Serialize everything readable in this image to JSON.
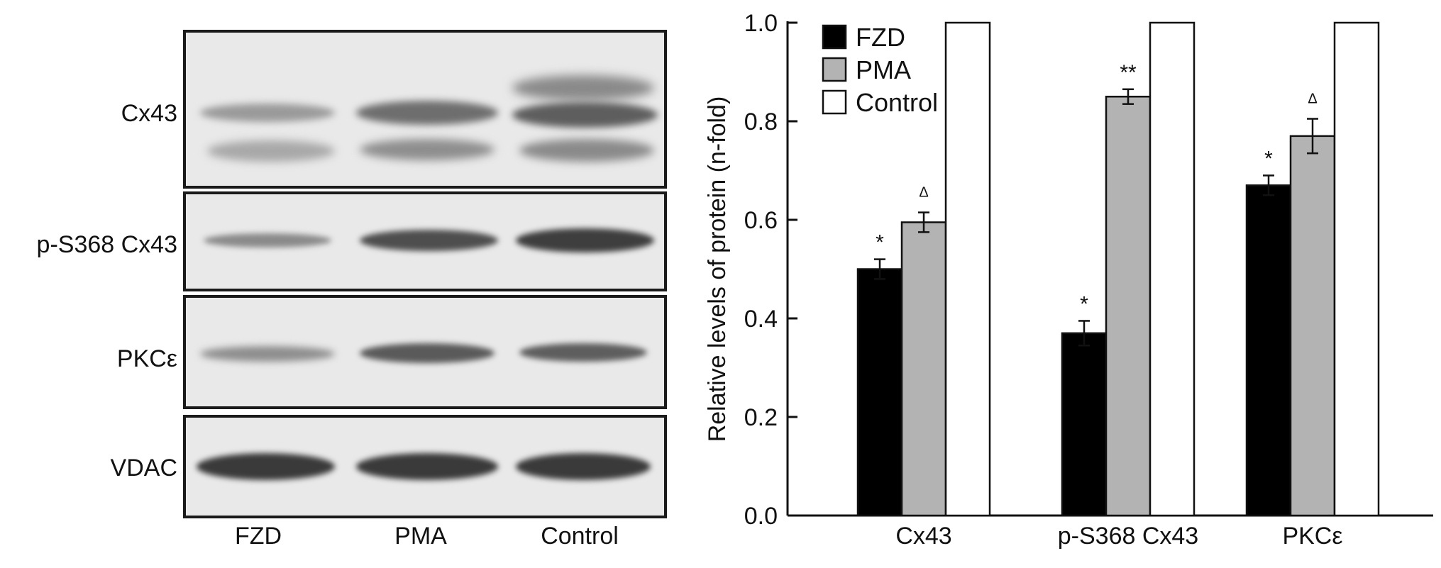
{
  "blot": {
    "rows": [
      {
        "label": "Cx43"
      },
      {
        "label": "p-S368 Cx43"
      },
      {
        "label": "PKCε"
      },
      {
        "label": "VDAC"
      }
    ],
    "lanes": [
      "FZD",
      "PMA",
      "Control"
    ]
  },
  "chart_data": {
    "type": "bar",
    "ylabel": "Relative levels of protein (n-fold)",
    "xlabel": "",
    "ylim": [
      0.0,
      1.0
    ],
    "yticks": [
      "0.0",
      "0.2",
      "0.4",
      "0.6",
      "0.8",
      "1.0"
    ],
    "categories": [
      "Cx43",
      "p-S368 Cx43",
      "PKCε"
    ],
    "series": [
      {
        "name": "FZD",
        "color": "#000000",
        "values": [
          0.5,
          0.37,
          0.67
        ],
        "errors": [
          0.02,
          0.025,
          0.02
        ],
        "marks": [
          "*",
          "*",
          "*"
        ]
      },
      {
        "name": "PMA",
        "color": "#b3b3b3",
        "values": [
          0.595,
          0.85,
          0.77
        ],
        "errors": [
          0.02,
          0.015,
          0.035
        ],
        "marks": [
          "Δ",
          "**",
          "Δ"
        ]
      },
      {
        "name": "Control",
        "color": "#ffffff",
        "values": [
          1.0,
          1.0,
          1.0
        ],
        "errors": [
          0,
          0,
          0
        ],
        "marks": [
          "",
          "",
          ""
        ]
      }
    ],
    "legend_position": "top-left",
    "grid": false
  }
}
